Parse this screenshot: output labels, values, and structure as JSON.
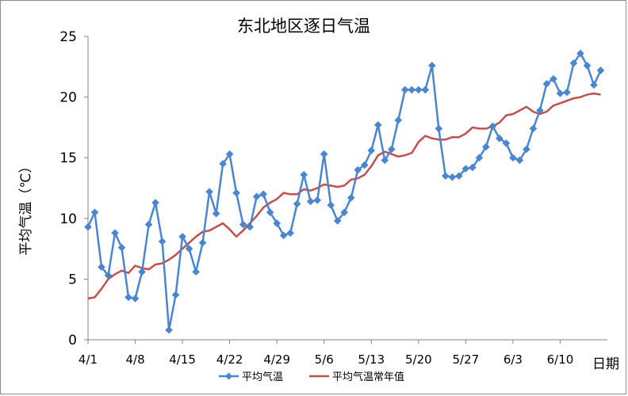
{
  "chart_data": {
    "type": "line",
    "title": "东北地区逐日气温",
    "xlabel": "日期",
    "ylabel": "平均气温（℃）",
    "ylim": [
      0,
      25
    ],
    "yticks": [
      "0",
      "5",
      "10",
      "15",
      "20",
      "25"
    ],
    "x_tick_labels": [
      "4/1",
      "4/8",
      "4/15",
      "4/22",
      "4/29",
      "5/6",
      "5/13",
      "5/20",
      "5/27",
      "6/3",
      "6/10"
    ],
    "x_tick_positions": [
      0,
      7,
      14,
      21,
      28,
      35,
      42,
      49,
      56,
      63,
      70
    ],
    "x_range": [
      0,
      77
    ],
    "grid": false,
    "legend_position": "bottom",
    "series": [
      {
        "name": "平均气温",
        "color": "#4a86cf",
        "marker": "diamond",
        "values": [
          9.3,
          10.5,
          6.0,
          5.3,
          8.8,
          7.6,
          3.5,
          3.4,
          5.6,
          9.5,
          11.3,
          8.1,
          0.8,
          3.7,
          8.5,
          7.5,
          5.6,
          8.0,
          12.2,
          10.4,
          14.5,
          15.3,
          12.1,
          9.5,
          9.3,
          11.8,
          12.0,
          10.5,
          9.6,
          8.6,
          8.8,
          11.2,
          13.6,
          11.4,
          11.5,
          15.3,
          11.1,
          9.8,
          10.5,
          11.7,
          14.0,
          14.4,
          15.6,
          17.7,
          14.8,
          15.7,
          18.1,
          20.6,
          20.6,
          20.6,
          20.6,
          22.6,
          17.4,
          13.5,
          13.4,
          13.5,
          14.1,
          14.2,
          15.0,
          15.9,
          17.6,
          16.6,
          16.2,
          15.0,
          14.8,
          15.7,
          17.4,
          18.9,
          21.1,
          21.5,
          20.3,
          20.4,
          22.8,
          23.6,
          22.6,
          21.0,
          22.2
        ]
      },
      {
        "name": "平均气温常年值",
        "color": "#c0504d",
        "values": [
          3.4,
          3.5,
          4.2,
          5.0,
          5.4,
          5.7,
          5.5,
          6.1,
          5.9,
          5.8,
          6.2,
          6.3,
          6.6,
          7.0,
          7.5,
          8.0,
          8.5,
          8.9,
          9.0,
          9.3,
          9.6,
          9.1,
          8.5,
          9.0,
          9.6,
          10.2,
          10.9,
          11.3,
          11.6,
          12.1,
          12.0,
          12.0,
          12.4,
          12.3,
          12.5,
          12.8,
          12.7,
          12.6,
          12.7,
          13.2,
          13.3,
          13.6,
          14.3,
          15.2,
          15.5,
          15.3,
          15.1,
          15.2,
          15.4,
          16.3,
          16.8,
          16.6,
          16.5,
          16.5,
          16.7,
          16.7,
          17.0,
          17.5,
          17.4,
          17.4,
          17.6,
          17.9,
          18.5,
          18.6,
          18.9,
          19.2,
          18.8,
          18.6,
          18.8,
          19.3,
          19.5,
          19.7,
          19.9,
          20.0,
          20.2,
          20.3,
          20.2
        ]
      }
    ]
  }
}
